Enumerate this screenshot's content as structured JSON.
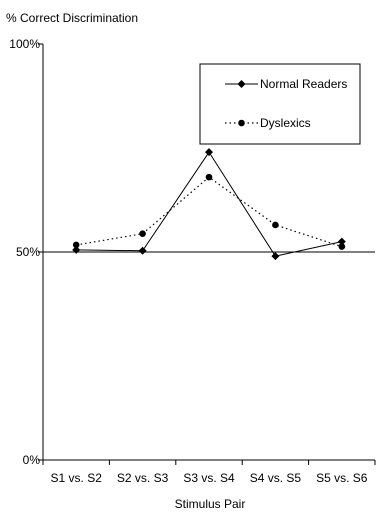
{
  "chart_data": {
    "type": "line",
    "title": "",
    "ylabel": "% Correct Discrimination",
    "xlabel": "Stimulus Pair",
    "categories": [
      "S1 vs. S2",
      "S2 vs. S3",
      "S3 vs. S4",
      "S4 vs. S5",
      "S5 vs. S6"
    ],
    "ylim": [
      0,
      100
    ],
    "yticks": [
      {
        "value": 0,
        "label": "0%"
      },
      {
        "value": 50,
        "label": "50%"
      },
      {
        "value": 100,
        "label": "100%"
      }
    ],
    "reference_line": 50,
    "grid": false,
    "legend_position": "top-right",
    "series": [
      {
        "name": "Normal Readers",
        "style": "solid",
        "marker": "diamond",
        "color": "#000000",
        "values": [
          50.5,
          50.3,
          74,
          49,
          52.5
        ]
      },
      {
        "name": "Dyslexics",
        "style": "dotted",
        "marker": "circle",
        "color": "#000000",
        "values": [
          51.7,
          54.4,
          68,
          56.5,
          51.3
        ]
      }
    ]
  }
}
